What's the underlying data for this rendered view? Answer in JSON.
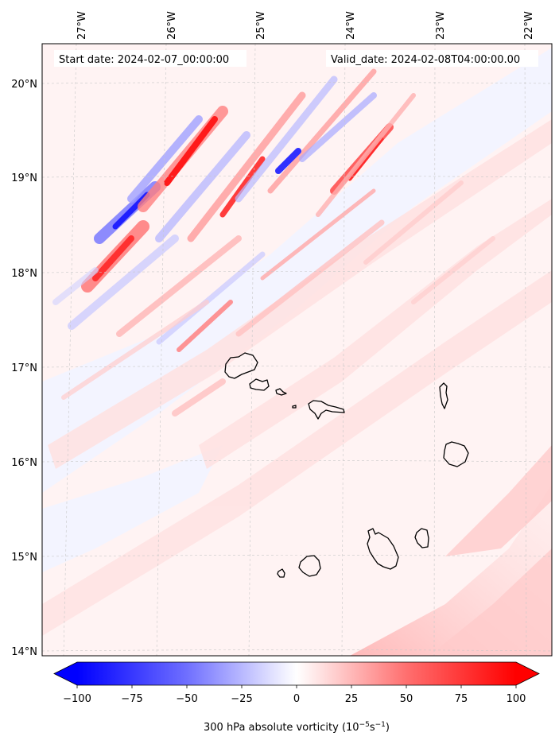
{
  "map": {
    "start_label": "Start date: 2024-02-07_00:00:00",
    "valid_label": "Valid_date: 2024-02-08T04:00:00.00",
    "lon_labels": [
      "27°W",
      "26°W",
      "25°W",
      "24°W",
      "23°W",
      "22°W"
    ],
    "lat_labels": [
      "20°N",
      "19°N",
      "18°N",
      "17°N",
      "16°N",
      "15°N",
      "14°N"
    ],
    "field": "300 hPa absolute vorticity"
  },
  "colorbar": {
    "ticks": [
      "−100",
      "−75",
      "−50",
      "−25",
      "0",
      "25",
      "50",
      "75",
      "100"
    ],
    "label_main": "300 hPa absolute vorticity (10",
    "label_exp1": "−5",
    "label_mid": "s",
    "label_exp2": "−1",
    "label_end": ")",
    "min_color": "#0000ff",
    "mid_color": "#ffffff",
    "max_color": "#ff0000"
  }
}
